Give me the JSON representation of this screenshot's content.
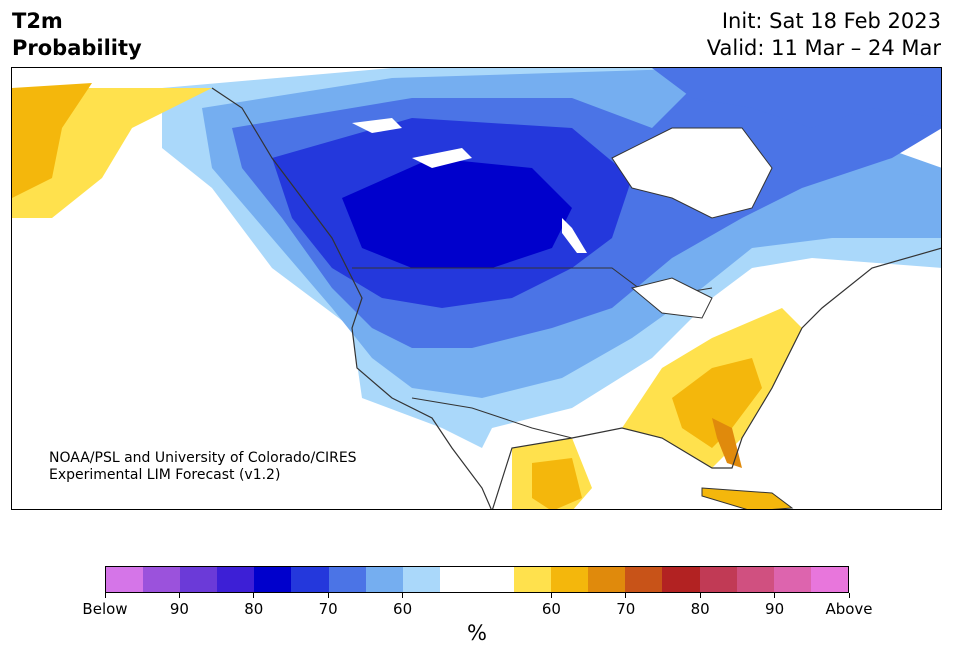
{
  "header": {
    "title_line1": "T2m",
    "title_line2": "Probability",
    "init": "Init: Sat 18 Feb 2023",
    "valid": "Valid: 11 Mar – 24 Mar"
  },
  "map": {
    "region": "North America",
    "credit_line1": "NOAA/PSL and University of Colorado/CIRES",
    "credit_line2": "Experimental LIM Forecast (v1.2)"
  },
  "colorbar": {
    "unit": "%",
    "bins": [
      "#d575e8",
      "#9b52dc",
      "#6b3ad8",
      "#3d1fd6",
      "#0000cc",
      "#2438dc",
      "#4b74e6",
      "#75aef0",
      "#aad8fa",
      "#ffffff",
      "#ffffff",
      "#ffe14d",
      "#f4b70c",
      "#e08a0c",
      "#c85318",
      "#b22222",
      "#c13a55",
      "#d05080",
      "#dd64ae",
      "#e876dc"
    ],
    "labels": [
      "Below",
      "90",
      "80",
      "70",
      "60",
      "60",
      "70",
      "80",
      "90",
      "Above"
    ]
  }
}
